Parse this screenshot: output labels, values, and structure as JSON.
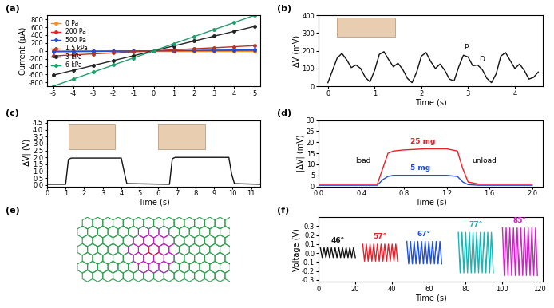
{
  "chart_data": [
    {
      "type": "line",
      "title": "(a)",
      "y_label": "Current (μA)",
      "xlim": [
        -5.3,
        5.3
      ],
      "xticks": [
        -5,
        -4,
        -3,
        -2,
        -1,
        0,
        1,
        2,
        3,
        4,
        5
      ],
      "ylim": [
        -900,
        900
      ],
      "yticks": [
        -800,
        -600,
        -400,
        -200,
        0,
        200,
        400,
        600,
        800
      ],
      "legend": "upper left",
      "marker": "o",
      "line_style": "solid",
      "x": [
        -5,
        -4,
        -3,
        -2,
        -1,
        0,
        1,
        2,
        3,
        4,
        5
      ],
      "series": [
        {
          "name": "0 Pa",
          "color": "#ff8c1a",
          "values": [
            0,
            0,
            0,
            0,
            0,
            0,
            0,
            0,
            0,
            0,
            0
          ]
        },
        {
          "name": "200 Pa",
          "color": "#e8202a",
          "values": [
            -10,
            -8,
            -6,
            -4,
            -2,
            0,
            2,
            4,
            6,
            8,
            10
          ]
        },
        {
          "name": "500 Pa",
          "color": "#1f4fd6",
          "values": [
            -25,
            -20,
            -15,
            -10,
            -5,
            0,
            5,
            10,
            15,
            20,
            25
          ]
        },
        {
          "name": "1.5 kPa",
          "color": "#b2352a",
          "values": [
            -130,
            -104,
            -78,
            -52,
            -26,
            0,
            26,
            52,
            78,
            104,
            130
          ]
        },
        {
          "name": "3 kPa",
          "color": "#222222",
          "values": [
            -620,
            -496,
            -372,
            -248,
            -124,
            0,
            124,
            248,
            372,
            496,
            620
          ]
        },
        {
          "name": "6 kPa",
          "color": "#1e9e6a",
          "values": [
            -900,
            -720,
            -540,
            -360,
            -180,
            0,
            180,
            360,
            540,
            720,
            900
          ]
        }
      ]
    },
    {
      "type": "line",
      "title": "(b)",
      "x_label": "Time (s)",
      "y_label": "ΔV (mV)",
      "xlim": [
        -0.2,
        4.6
      ],
      "xticks": [
        0,
        1,
        2,
        3,
        4
      ],
      "ylim": [
        0,
        400
      ],
      "yticks": [
        0,
        100,
        200,
        300,
        400
      ],
      "line_style": "solid",
      "x": [
        0.0,
        0.1,
        0.2,
        0.3,
        0.4,
        0.5,
        0.6,
        0.7,
        0.8,
        0.9,
        1.0,
        1.1,
        1.2,
        1.3,
        1.4,
        1.5,
        1.6,
        1.7,
        1.8,
        1.9,
        2.0,
        2.1,
        2.2,
        2.3,
        2.4,
        2.5,
        2.6,
        2.7,
        2.8,
        2.9,
        3.0,
        3.1,
        3.2,
        3.3,
        3.4,
        3.5,
        3.6,
        3.7,
        3.8,
        3.9,
        4.0,
        4.1,
        4.2,
        4.3,
        4.4,
        4.5
      ],
      "series": [
        {
          "color": "#111111",
          "values": [
            20,
            90,
            160,
            185,
            150,
            105,
            120,
            100,
            50,
            25,
            90,
            180,
            195,
            150,
            110,
            130,
            95,
            45,
            20,
            80,
            170,
            190,
            140,
            100,
            125,
            90,
            40,
            30,
            110,
            175,
            165,
            115,
            120,
            95,
            45,
            20,
            70,
            170,
            190,
            145,
            100,
            125,
            90,
            40,
            50,
            80
          ]
        }
      ],
      "annotations": [
        {
          "text": "P",
          "x": 2.95,
          "y": 200
        },
        {
          "text": "D",
          "x": 3.3,
          "y": 130
        }
      ]
    },
    {
      "type": "line",
      "title": "(c)",
      "x_label": "Time (s)",
      "y_label": "|ΔV| (V)",
      "xlim": [
        0,
        11.5
      ],
      "xticks": [
        0,
        1,
        2,
        3,
        4,
        5,
        6,
        7,
        8,
        9,
        10,
        11
      ],
      "ylim": [
        -0.1,
        4.7
      ],
      "yticks": [
        {
          "value": 0,
          "label": "0.0"
        },
        0.5,
        {
          "value": 1,
          "label": "1.0"
        },
        1.5,
        {
          "value": 2,
          "label": "2.0"
        },
        2.5,
        {
          "value": 3,
          "label": "3.0"
        },
        3.5,
        {
          "value": 4,
          "label": "4.0"
        },
        4.5
      ],
      "line_style": "solid",
      "x": [
        0,
        1.0,
        1.15,
        1.3,
        2.5,
        4.0,
        4.15,
        4.3,
        6.6,
        6.75,
        6.9,
        8.5,
        9.8,
        9.95,
        10.1,
        11.5
      ],
      "series": [
        {
          "color": "#111111",
          "values": [
            0.05,
            0.05,
            1.85,
            1.95,
            1.95,
            1.95,
            1.0,
            0.1,
            0.05,
            1.9,
            2.0,
            2.0,
            2.0,
            0.8,
            0.1,
            0.05
          ]
        }
      ]
    },
    {
      "type": "line",
      "title": "(d)",
      "x_label": "Time (s)",
      "y_label": "|ΔV| (mV)",
      "xlim": [
        0,
        2.1
      ],
      "xticks": [
        {
          "value": 0,
          "label": "0.0"
        },
        0.4,
        0.8,
        1.2,
        1.6,
        {
          "value": 2,
          "label": "2.0"
        }
      ],
      "ylim": [
        0,
        30
      ],
      "yticks": [
        0,
        5,
        10,
        15,
        20,
        25,
        30
      ],
      "line_style": "solid",
      "x": [
        0,
        0.55,
        0.6,
        0.65,
        0.7,
        0.8,
        1.0,
        1.2,
        1.3,
        1.35,
        1.4,
        1.5,
        2.0
      ],
      "series": [
        {
          "name": "25 mg",
          "color": "#e8202a",
          "values": [
            1,
            1,
            8,
            15,
            16,
            16.5,
            17,
            17,
            16,
            8,
            2,
            1,
            1
          ]
        },
        {
          "name": "5 mg",
          "color": "#1f4fd6",
          "values": [
            0.5,
            0.5,
            3,
            4.5,
            5,
            5,
            5,
            5,
            4.5,
            2,
            0.8,
            0.5,
            0.5
          ]
        }
      ],
      "annotations": [
        {
          "text": "load",
          "x": 0.42,
          "y": 10
        },
        {
          "text": "unload",
          "x": 1.55,
          "y": 10
        }
      ]
    },
    {
      "type": "image",
      "title": "(e)"
    },
    {
      "type": "line",
      "title": "(f)",
      "x_label": "Time (s)",
      "y_label": "Voltage (V)",
      "xlim": [
        0,
        122
      ],
      "xticks": [
        0,
        20,
        40,
        60,
        80,
        100,
        120
      ],
      "ylim": [
        -0.32,
        0.4
      ],
      "yticks": [
        -0.3,
        -0.2,
        -0.1,
        {
          "value": 0,
          "label": "0.0"
        },
        0.1,
        0.2,
        0.3
      ],
      "line_style": "solid",
      "series": [
        {
          "name": "46°",
          "color": "#111111",
          "x": [
            1,
            2,
            3,
            4,
            5,
            6,
            7,
            8,
            9,
            10,
            11,
            12,
            13,
            14,
            15,
            16,
            17,
            18,
            19,
            20
          ],
          "values": [
            0.06,
            -0.05,
            0.06,
            -0.05,
            0.06,
            -0.05,
            0.06,
            -0.05,
            0.06,
            -0.05,
            0.06,
            -0.05,
            0.06,
            -0.05,
            0.06,
            -0.05,
            0.06,
            -0.05,
            0.06,
            -0.05
          ]
        },
        {
          "name": "57°",
          "color": "#e8202a",
          "x": [
            24,
            25,
            26,
            27,
            28,
            29,
            30,
            31,
            32,
            33,
            34,
            35,
            36,
            37,
            38,
            39,
            40,
            41,
            42,
            43
          ],
          "values": [
            0.1,
            -0.09,
            0.1,
            -0.09,
            0.1,
            -0.09,
            0.1,
            -0.09,
            0.1,
            -0.09,
            0.1,
            -0.09,
            0.1,
            -0.09,
            0.1,
            -0.09,
            0.1,
            -0.09,
            0.1,
            -0.09
          ]
        },
        {
          "name": "67°",
          "color": "#1f4fd6",
          "x": [
            48,
            49,
            50,
            51,
            52,
            53,
            54,
            55,
            56,
            57,
            58,
            59,
            60,
            61,
            62,
            63,
            64,
            65,
            66,
            67
          ],
          "values": [
            0.13,
            -0.12,
            0.13,
            -0.12,
            0.13,
            -0.12,
            0.13,
            -0.12,
            0.13,
            -0.12,
            0.13,
            -0.12,
            0.13,
            -0.12,
            0.13,
            -0.12,
            0.13,
            -0.12,
            0.13,
            -0.12
          ]
        },
        {
          "name": "77°",
          "color": "#19b5b5",
          "x": [
            76,
            77,
            78,
            79,
            80,
            81,
            82,
            83,
            84,
            85,
            86,
            87,
            88,
            89,
            90,
            91,
            92,
            93,
            94,
            95
          ],
          "values": [
            0.23,
            -0.22,
            0.23,
            -0.22,
            0.23,
            -0.22,
            0.23,
            -0.22,
            0.23,
            -0.22,
            0.23,
            -0.22,
            0.23,
            -0.22,
            0.23,
            -0.22,
            0.23,
            -0.22,
            0.23,
            -0.22
          ]
        },
        {
          "name": "85°",
          "color": "#d020c8",
          "x": [
            100,
            101,
            102,
            103,
            104,
            105,
            106,
            107,
            108,
            109,
            110,
            111,
            112,
            113,
            114,
            115,
            116,
            117,
            118,
            119
          ],
          "values": [
            0.28,
            -0.25,
            0.28,
            -0.25,
            0.28,
            -0.25,
            0.28,
            -0.25,
            0.28,
            -0.25,
            0.28,
            -0.25,
            0.28,
            -0.25,
            0.28,
            -0.25,
            0.28,
            -0.25,
            0.28,
            -0.25
          ]
        }
      ]
    }
  ]
}
